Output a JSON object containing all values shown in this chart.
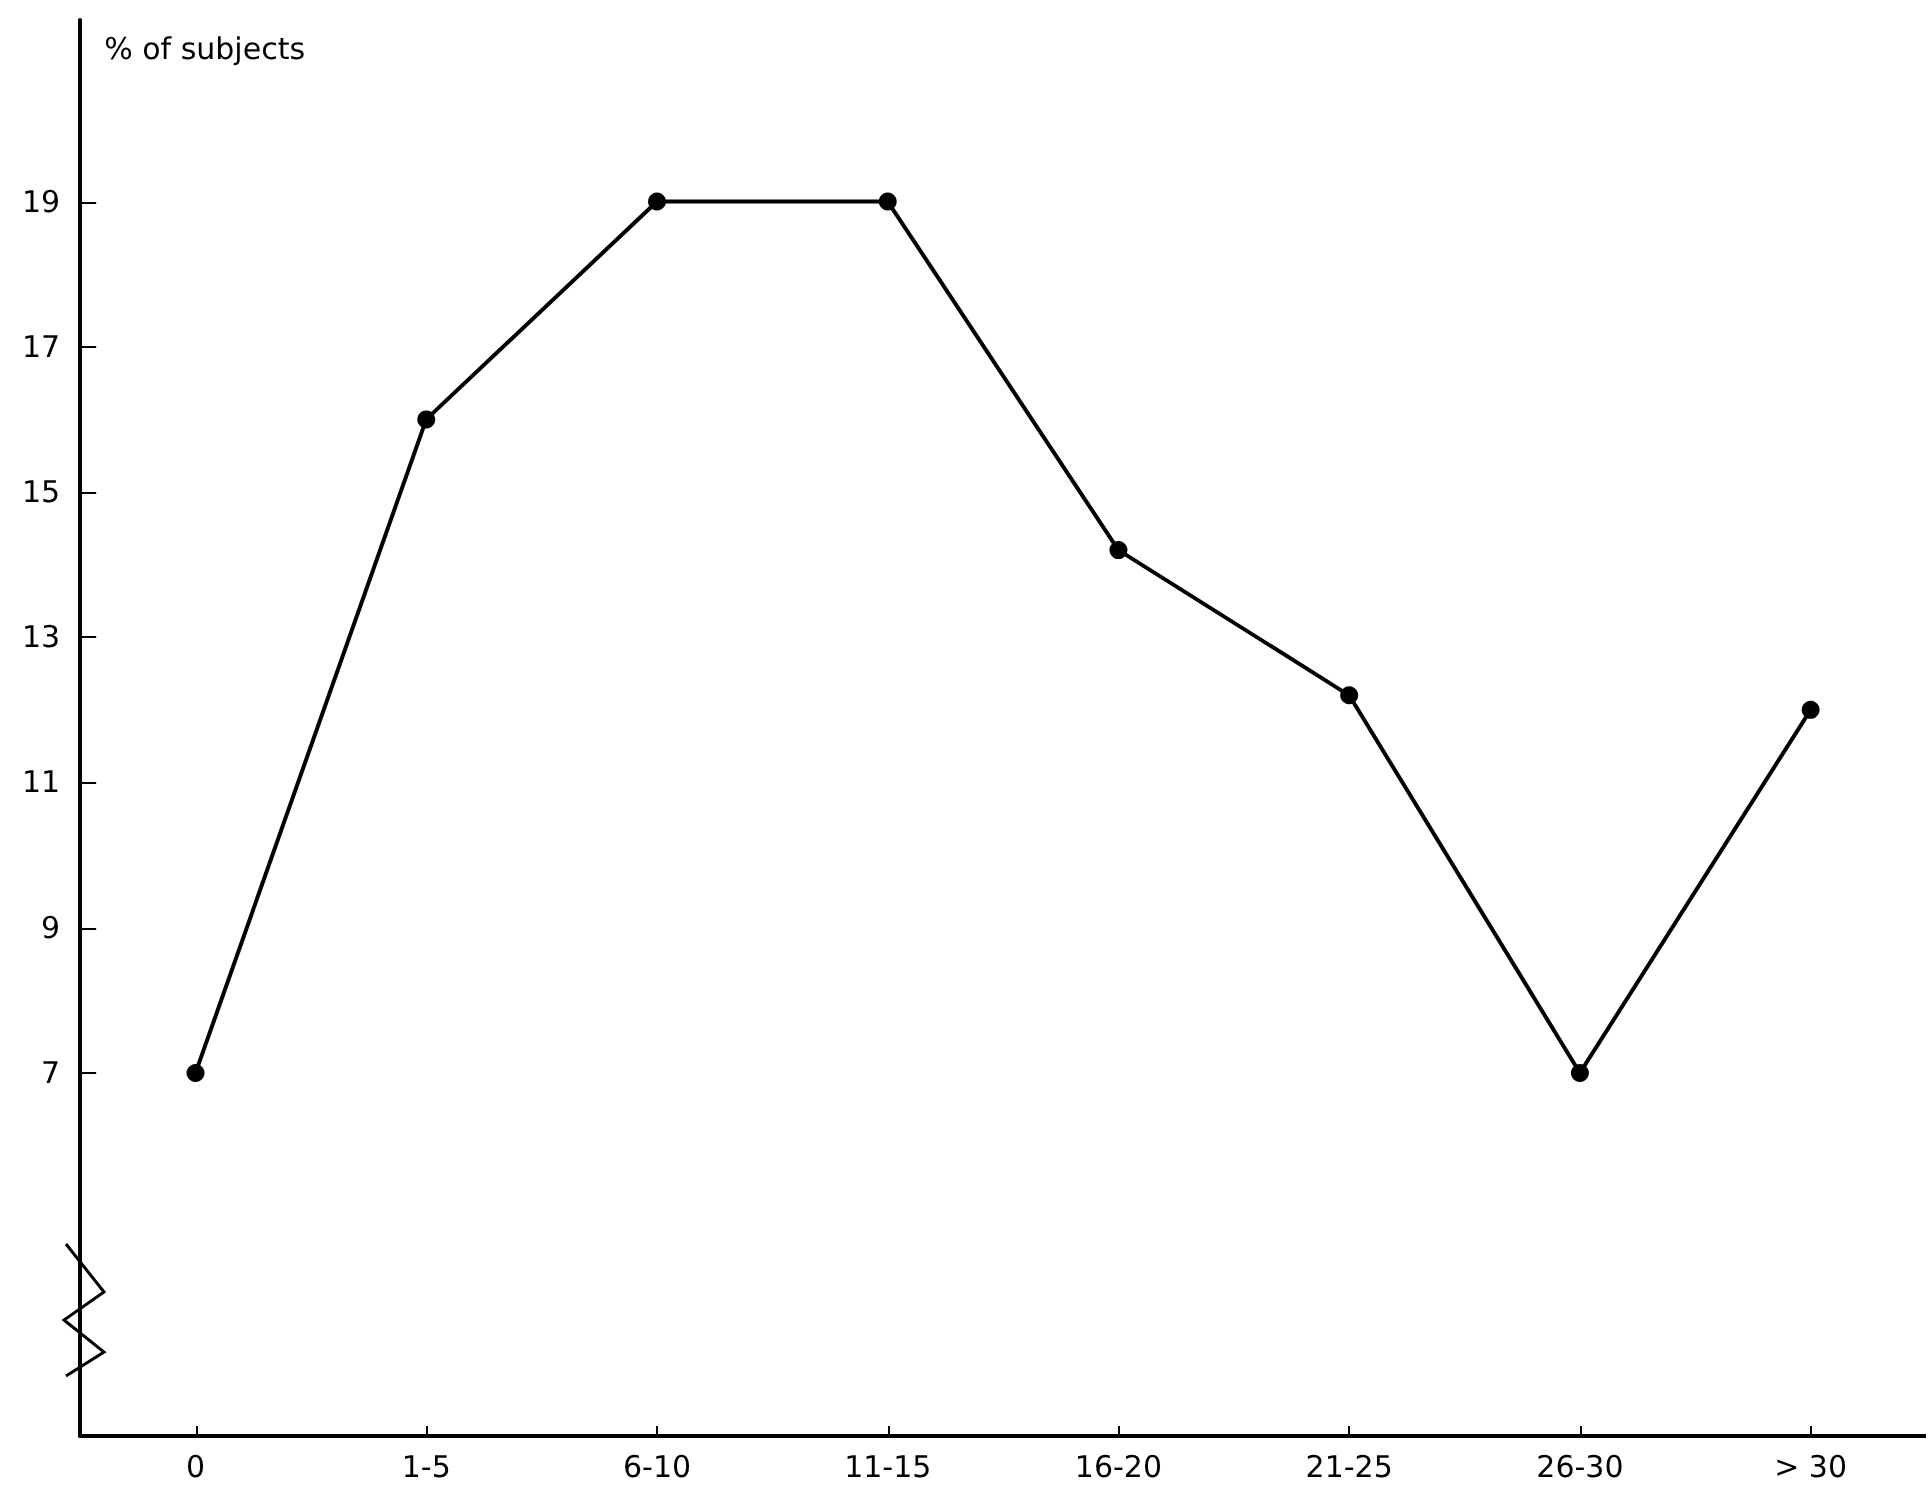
{
  "chart_data": {
    "type": "line",
    "ylabel": "% of subjects",
    "categories": [
      "0",
      "1-5",
      "6-10",
      "11-15",
      "16-20",
      "21-25",
      "26-30",
      "> 30"
    ],
    "series": [
      {
        "color": "#000000",
        "values": [
          7,
          16,
          19,
          19,
          14.2,
          12.2,
          7,
          12
        ]
      }
    ],
    "ylim": [
      2,
      21.5
    ],
    "yticks": [
      7,
      9,
      11,
      13,
      15,
      17,
      19
    ],
    "grid": false,
    "marker": "circle",
    "line_style": "solid"
  }
}
